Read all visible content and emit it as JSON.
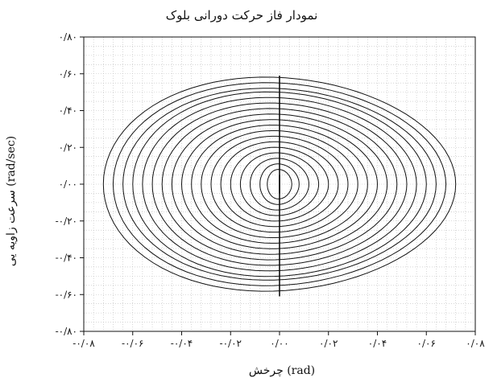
{
  "chart_data": {
    "type": "line",
    "title": "نمودار فاز حرکت دورانی بلوک",
    "xlabel": "چرخش (rad)",
    "ylabel": "سرعت زاویه یی (rad/sec)",
    "xlim": [
      -0.08,
      0.08
    ],
    "ylim": [
      -0.8,
      0.8
    ],
    "x_ticks": [
      -0.08,
      -0.06,
      -0.04,
      -0.02,
      0.0,
      0.02,
      0.04,
      0.06,
      0.08
    ],
    "y_ticks": [
      -0.8,
      -0.6,
      -0.4,
      -0.2,
      0.0,
      0.2,
      0.4,
      0.6,
      0.8
    ],
    "x_tick_labels": [
      "-۰/۰۸",
      "-۰/۰۶",
      "-۰/۰۴",
      "-۰/۰۲",
      "۰/۰۰",
      "۰/۰۲",
      "۰/۰۴",
      "۰/۰۶",
      "۰/۰۸"
    ],
    "y_tick_labels": [
      "-۰/۸۰",
      "-۰/۶۰",
      "-۰/۴۰",
      "-۰/۲۰",
      "۰/۰۰",
      "۰/۲۰",
      "۰/۴۰",
      "۰/۶۰",
      "۰/۸۰"
    ],
    "grid": true,
    "legend": "none",
    "line_color": "#111111",
    "grid_color": "#bdbdbd",
    "orbits": [
      {
        "amp_x": 0.072,
        "amp_y": 0.58
      },
      {
        "amp_x": 0.068,
        "amp_y": 0.55
      },
      {
        "amp_x": 0.064,
        "amp_y": 0.52
      },
      {
        "amp_x": 0.06,
        "amp_y": 0.5
      },
      {
        "amp_x": 0.056,
        "amp_y": 0.47
      },
      {
        "amp_x": 0.052,
        "amp_y": 0.44
      },
      {
        "amp_x": 0.048,
        "amp_y": 0.41
      },
      {
        "amp_x": 0.044,
        "amp_y": 0.38
      },
      {
        "amp_x": 0.04,
        "amp_y": 0.35
      },
      {
        "amp_x": 0.036,
        "amp_y": 0.32
      },
      {
        "amp_x": 0.032,
        "amp_y": 0.29
      },
      {
        "amp_x": 0.028,
        "amp_y": 0.26
      },
      {
        "amp_x": 0.024,
        "amp_y": 0.23
      },
      {
        "amp_x": 0.02,
        "amp_y": 0.2
      },
      {
        "amp_x": 0.016,
        "amp_y": 0.17
      },
      {
        "amp_x": 0.012,
        "amp_y": 0.14
      },
      {
        "amp_x": 0.008,
        "amp_y": 0.11
      },
      {
        "amp_x": 0.005,
        "amp_y": 0.08
      }
    ],
    "impact_jumps": [
      {
        "y_from": 0.59,
        "y_to": -0.05
      },
      {
        "y_from": 0.05,
        "y_to": -0.61
      }
    ]
  }
}
